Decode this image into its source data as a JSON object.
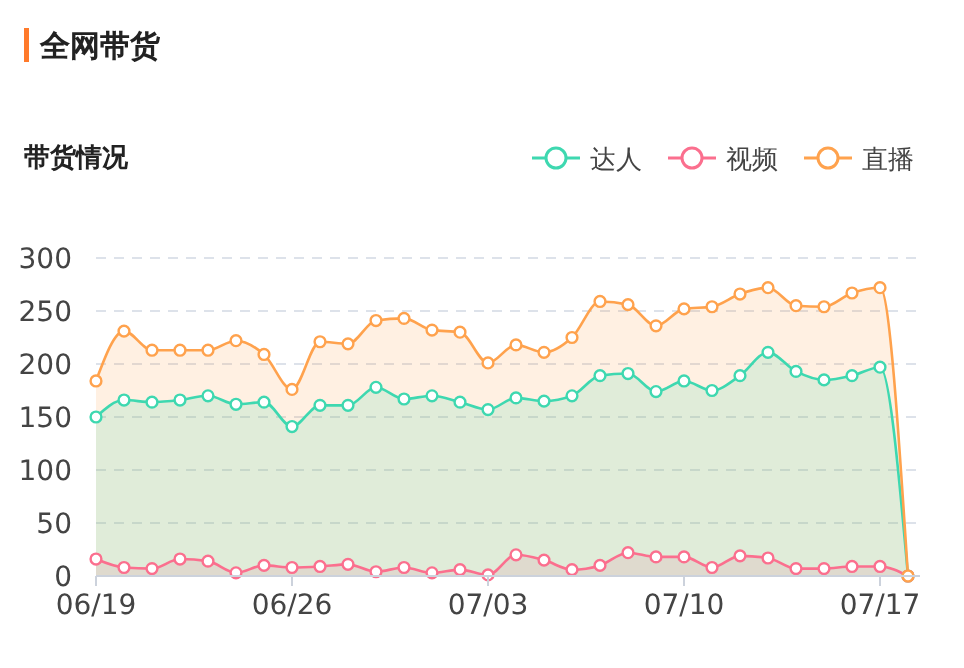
{
  "chart_data": {
    "type": "area",
    "title": "全网带货",
    "subtitle": "带货情况",
    "categories": [
      "06/19",
      null,
      null,
      null,
      null,
      null,
      null,
      "06/26",
      null,
      null,
      null,
      null,
      null,
      null,
      "07/03",
      null,
      null,
      null,
      null,
      null,
      null,
      "07/10",
      null,
      null,
      null,
      null,
      null,
      null,
      "07/17",
      null
    ],
    "series": [
      {
        "name": "达人",
        "color": "#3ed8b0",
        "values": [
          150,
          166,
          164,
          166,
          170,
          162,
          164,
          141,
          161,
          161,
          178,
          167,
          170,
          164,
          157,
          168,
          165,
          170,
          189,
          191,
          174,
          184,
          175,
          189,
          211,
          193,
          185,
          189,
          197,
          0
        ]
      },
      {
        "name": "视频",
        "color": "#fb6f8e",
        "values": [
          16,
          8,
          7,
          16,
          14,
          3,
          10,
          8,
          9,
          11,
          4,
          8,
          3,
          6,
          1,
          20,
          15,
          6,
          10,
          22,
          18,
          18,
          8,
          19,
          17,
          7,
          7,
          9,
          9,
          0
        ]
      },
      {
        "name": "直播",
        "color": "#ffa24d",
        "values": [
          184,
          231,
          213,
          213,
          213,
          222,
          209,
          176,
          221,
          219,
          241,
          243,
          232,
          230,
          201,
          218,
          211,
          225,
          259,
          256,
          236,
          252,
          254,
          266,
          272,
          255,
          254,
          267,
          272,
          0
        ]
      }
    ],
    "ylim": [
      0,
      300
    ],
    "yticks": [
      0,
      50,
      100,
      150,
      200,
      250,
      300
    ],
    "grid": "y",
    "legend": "top right",
    "marker": "circle",
    "line_style": "solid"
  }
}
